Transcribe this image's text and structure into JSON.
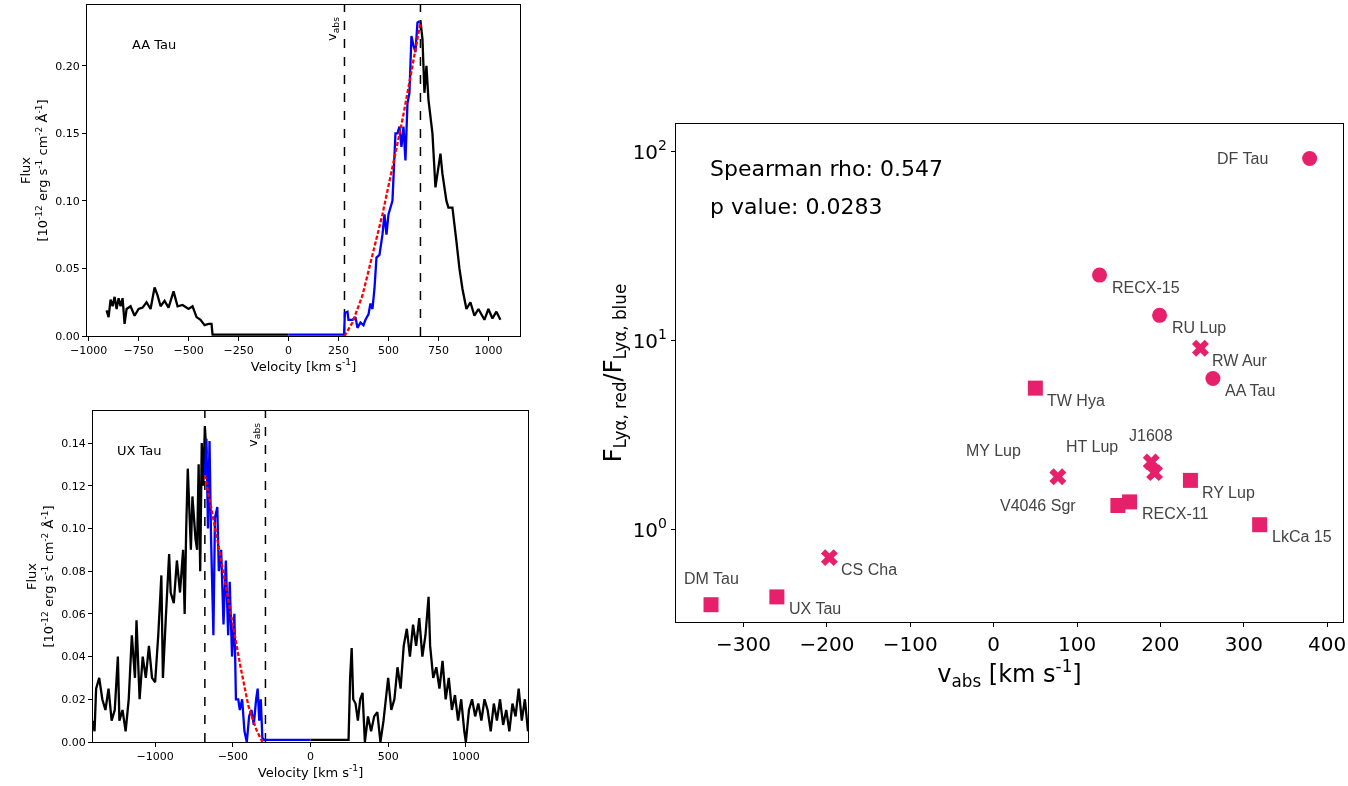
{
  "chart_data": [
    {
      "type": "line",
      "xlabel": "Velocity [km s$^{-1}$]",
      "ylabel": "Flux\n[10$^{-12}$ erg s$^{-1}$ cm$^{-2}$ Å$^{-1}$]",
      "annotations": [
        "AA Tau"
      ],
      "xlim": [
        -1008,
        1158
      ],
      "ylim": [
        0,
        0.245
      ],
      "xticks": [
        {
          "value": -1000,
          "label": "−1000"
        },
        {
          "value": -750,
          "label": "−750"
        },
        {
          "value": -500,
          "label": "−500"
        },
        {
          "value": -250,
          "label": "−250"
        },
        0,
        250,
        500,
        750,
        1000
      ],
      "yticks": [
        {
          "value": 0,
          "label": "0.00"
        },
        {
          "value": 0.05,
          "label": "0.05"
        },
        {
          "value": 0.1,
          "label": "0.10"
        },
        {
          "value": 0.15,
          "label": "0.15"
        },
        {
          "value": 0.2,
          "label": "0.20"
        }
      ],
      "ref_lines": [
        {
          "axis": "x",
          "value": 280,
          "label": "v$_{abs}$",
          "color": "#000000",
          "line_style": "dashed"
        },
        {
          "axis": "x",
          "value": 660,
          "color": "#000000",
          "line_style": "dashed"
        }
      ],
      "series": [
        {
          "color": "#000000",
          "line_style": "solid",
          "x": [
            -910,
            -900,
            -890,
            -880,
            -870,
            -860,
            -850,
            -840,
            -830,
            -820,
            -810,
            -790,
            -770,
            -750,
            -730,
            -710,
            -690,
            -670,
            -655,
            -640,
            -620,
            -600,
            -575,
            -555,
            -530,
            -500,
            -480,
            -460,
            -440,
            -420,
            -400,
            -385,
            -380,
            0
          ],
          "values": [
            0.019,
            0.014,
            0.027,
            0.022,
            0.029,
            0.02,
            0.028,
            0.022,
            0.028,
            0.009,
            0.02,
            0.022,
            0.015,
            0.02,
            0.021,
            0.025,
            0.02,
            0.036,
            0.03,
            0.022,
            0.026,
            0.021,
            0.033,
            0.022,
            0.023,
            0.02,
            0.022,
            0.014,
            0.012,
            0.008,
            0.009,
            0.009,
            0.001,
            0.001
          ]
        },
        {
          "color": "#000000",
          "line_style": "solid",
          "x": [
            655,
            660,
            670,
            680,
            690,
            700,
            720,
            735,
            750,
            760,
            770,
            790,
            800,
            820,
            840,
            855,
            870,
            890,
            910,
            930,
            950,
            980,
            1000,
            1020,
            1040,
            1060
          ],
          "values": [
            0.233,
            0.233,
            0.22,
            0.18,
            0.2,
            0.175,
            0.15,
            0.11,
            0.125,
            0.135,
            0.12,
            0.1,
            0.095,
            0.095,
            0.07,
            0.05,
            0.035,
            0.02,
            0.025,
            0.015,
            0.02,
            0.012,
            0.02,
            0.013,
            0.018,
            0.012
          ]
        },
        {
          "color": "#0000ff",
          "line_style": "solid",
          "x": [
            0,
            278,
            282,
            295,
            300,
            320,
            335,
            345,
            360,
            375,
            385,
            400,
            410,
            420,
            430,
            440,
            455,
            470,
            480,
            490,
            500,
            520,
            535,
            545,
            555,
            565,
            575,
            585,
            595,
            605,
            615,
            625,
            635,
            645,
            655
          ],
          "values": [
            0.001,
            0.001,
            0.017,
            0.018,
            0.012,
            0.012,
            0.014,
            0.006,
            0.01,
            0.008,
            0.012,
            0.016,
            0.024,
            0.02,
            0.035,
            0.058,
            0.06,
            0.075,
            0.09,
            0.075,
            0.09,
            0.1,
            0.15,
            0.15,
            0.155,
            0.14,
            0.155,
            0.13,
            0.172,
            0.18,
            0.222,
            0.215,
            0.21,
            0.232,
            0.233
          ]
        },
        {
          "color": "#ff0000",
          "line_style": "dashed",
          "x": [
            280,
            320,
            370,
            420,
            470,
            520,
            570,
            620,
            660
          ],
          "values": [
            0,
            0.01,
            0.03,
            0.06,
            0.09,
            0.125,
            0.16,
            0.2,
            0.232
          ]
        }
      ]
    },
    {
      "type": "line",
      "xlabel": "Velocity [km s$^{-1}$]",
      "ylabel": "Flux\n[10$^{-12}$ erg s$^{-1}$ cm$^{-2}$ Å$^{-1}$]",
      "annotations": [
        "UX Tau"
      ],
      "xlim": [
        -1400,
        1400
      ],
      "ylim": [
        0,
        0.155
      ],
      "xticks": [
        {
          "value": -1000,
          "label": "−1000"
        },
        {
          "value": -500,
          "label": "−500"
        },
        0,
        500,
        1000
      ],
      "yticks": [
        {
          "value": 0,
          "label": "0.00"
        },
        {
          "value": 0.02,
          "label": "0.02"
        },
        {
          "value": 0.04,
          "label": "0.04"
        },
        {
          "value": 0.06,
          "label": "0.06"
        },
        {
          "value": 0.08,
          "label": "0.08"
        },
        {
          "value": 0.1,
          "label": "0.10"
        },
        {
          "value": 0.12,
          "label": "0.12"
        },
        {
          "value": 0.14,
          "label": "0.14"
        }
      ],
      "ref_lines": [
        {
          "axis": "x",
          "value": -680,
          "color": "#000000",
          "line_style": "dashed"
        },
        {
          "axis": "x",
          "value": -290,
          "label": "v$_{abs}$",
          "color": "#000000",
          "line_style": "dashed"
        }
      ],
      "series": [
        {
          "color": "#000000",
          "line_style": "solid",
          "x": [
            -1400,
            -1390,
            -1380,
            -1360,
            -1340,
            -1320,
            -1300,
            -1280,
            -1260,
            -1240,
            -1230,
            -1210,
            -1190,
            -1170,
            -1150,
            -1130,
            -1120,
            -1100,
            -1080,
            -1060,
            -1040,
            -1020,
            -1000,
            -980,
            -960,
            -950,
            -930,
            -910,
            -900,
            -880,
            -860,
            -840,
            -820,
            -810,
            -800,
            -790,
            -770,
            -760,
            -740,
            -730,
            -720,
            -710,
            -700,
            -690,
            -680,
            -670
          ],
          "values": [
            0.01,
            0.005,
            0.025,
            0.03,
            0.02,
            0.015,
            0.025,
            0.01,
            0.015,
            0.04,
            0.01,
            0.015,
            0.005,
            0.02,
            0.05,
            0.03,
            0.057,
            0.02,
            0.04,
            0.03,
            0.045,
            0.03,
            0.028,
            0.05,
            0.078,
            0.03,
            0.06,
            0.088,
            0.07,
            0.065,
            0.085,
            0.07,
            0.09,
            0.06,
            0.1,
            0.128,
            0.09,
            0.115,
            0.095,
            0.09,
            0.13,
            0.08,
            0.14,
            0.12,
            0.148,
            0.135
          ]
        },
        {
          "color": "#000000",
          "line_style": "solid",
          "x": [
            0,
            245,
            255,
            265,
            275,
            290,
            305,
            320,
            335,
            350,
            370,
            390,
            410,
            430,
            450,
            470,
            500,
            520,
            540,
            560,
            580,
            600,
            620,
            640,
            660,
            680,
            700,
            720,
            740,
            760,
            770,
            790,
            810,
            830,
            850,
            870,
            890,
            910,
            930,
            950,
            970,
            990,
            1000,
            1020,
            1040,
            1060,
            1080,
            1100,
            1120,
            1140,
            1160,
            1180,
            1200,
            1220,
            1240,
            1260,
            1280,
            1300,
            1320,
            1340,
            1360,
            1380,
            1400
          ],
          "values": [
            0.001,
            0.001,
            0.03,
            0.044,
            0.02,
            0.018,
            0.01,
            0.02,
            0.023,
            0,
            0.012,
            0.005,
            0.012,
            0.014,
            0,
            0.01,
            0.03,
            0.015,
            0.02,
            0.035,
            0.025,
            0.045,
            0.053,
            0.04,
            0.055,
            0.045,
            0.058,
            0.04,
            0.05,
            0.068,
            0.045,
            0.03,
            0.035,
            0.025,
            0.038,
            0.02,
            0.03,
            0.015,
            0.022,
            0.01,
            0.02,
            0.005,
            0,
            0.015,
            0.02,
            0.012,
            0.018,
            0.01,
            0.02,
            0.015,
            0.005,
            0.018,
            0.01,
            0.02,
            0.008,
            0.015,
            0.005,
            0.018,
            0.012,
            0.025,
            0.01,
            0.02,
            0.005
          ]
        },
        {
          "color": "#0000ff",
          "line_style": "solid",
          "x": [
            -680,
            -670,
            -660,
            -650,
            -640,
            -625,
            -615,
            -600,
            -590,
            -575,
            -560,
            -545,
            -530,
            -520,
            -505,
            -490,
            -480,
            -465,
            -455,
            -440,
            -425,
            -410,
            -395,
            -380,
            -365,
            -350,
            -340,
            -330,
            -320,
            -310,
            -300,
            0
          ],
          "values": [
            0.125,
            0.142,
            0.1,
            0.141,
            0.095,
            0.05,
            0.105,
            0.11,
            0.08,
            0.09,
            0.055,
            0.085,
            0.05,
            0.075,
            0.04,
            0.06,
            0.02,
            0.02,
            0.015,
            0.02,
            0.005,
            0,
            0.012,
            0.015,
            0.008,
            0.02,
            0.025,
            0.01,
            0.02,
            0.002,
            0.001,
            0.001
          ]
        },
        {
          "color": "#ff0000",
          "line_style": "dashed",
          "x": [
            -680,
            -600,
            -500,
            -450,
            -400,
            -350,
            -310
          ],
          "values": [
            0.125,
            0.095,
            0.055,
            0.035,
            0.017,
            0.006,
            0
          ]
        }
      ]
    },
    {
      "type": "scatter",
      "log": "y",
      "xlabel": "v$_{abs}$ [km s$^{-1}$]",
      "ylabel": "F$_{Lyα, red}$/F$_{Lyα, blue}$",
      "xlim": [
        -381,
        419
      ],
      "ylim": [
        0.324,
        140
      ],
      "xticks": [
        {
          "value": -300,
          "label": "−300"
        },
        {
          "value": -200,
          "label": "−200"
        },
        {
          "value": -100,
          "label": "−100"
        },
        0,
        100,
        200,
        300,
        400
      ],
      "yticks": [
        {
          "value": 1,
          "label": "10$^{0}$"
        },
        {
          "value": 10,
          "label": "10$^{1}$"
        },
        {
          "value": 100,
          "label": "10$^{2}$"
        }
      ],
      "annotations": [
        "Spearman rho: 0.547",
        "p value: 0.0283",
        {
          "text": "DF Tau",
          "x": 379,
          "y": 92
        },
        {
          "text": "RECX-15",
          "x": 127,
          "y": 22.2
        },
        {
          "text": "RU Lup",
          "x": 199,
          "y": 13.6
        },
        {
          "text": "RW Aur",
          "x": 248,
          "y": 9.1
        },
        {
          "text": "AA Tau",
          "x": 263,
          "y": 6.3
        },
        {
          "text": "TW Hya",
          "x": 50,
          "y": 5.6
        },
        {
          "text": "HT Lup",
          "x": 193,
          "y": 2.0
        },
        {
          "text": "J1608",
          "x": 189,
          "y": 2.28
        },
        {
          "text": "MY Lup",
          "x": 77,
          "y": 1.9
        },
        {
          "text": "RY Lup",
          "x": 236,
          "y": 1.82
        },
        {
          "text": "V4046 Sgr",
          "x": 149,
          "y": 1.34
        },
        {
          "text": "RECX-11",
          "x": 163,
          "y": 1.4
        },
        {
          "text": "LkCa 15",
          "x": 319,
          "y": 1.06
        },
        {
          "text": "CS Cha",
          "x": -197,
          "y": 0.71
        },
        {
          "text": "DM Tau",
          "x": -339,
          "y": 0.4
        },
        {
          "text": "UX Tau",
          "x": -260,
          "y": 0.44
        }
      ],
      "series": [
        {
          "color": "#e6206a",
          "marker": "circle",
          "x": [
            379,
            127,
            199,
            263
          ],
          "values": [
            92,
            22.2,
            13.6,
            6.3
          ]
        },
        {
          "color": "#e6206a",
          "marker": "cross",
          "x": [
            248,
            189,
            193,
            77,
            -197
          ],
          "values": [
            9.1,
            2.28,
            2.0,
            1.9,
            0.71
          ]
        },
        {
          "color": "#e6206a",
          "marker": "square",
          "x": [
            50,
            236,
            149,
            163,
            319,
            -260,
            -339
          ],
          "values": [
            5.6,
            1.82,
            1.34,
            1.4,
            1.06,
            0.44,
            0.4
          ]
        }
      ]
    }
  ]
}
